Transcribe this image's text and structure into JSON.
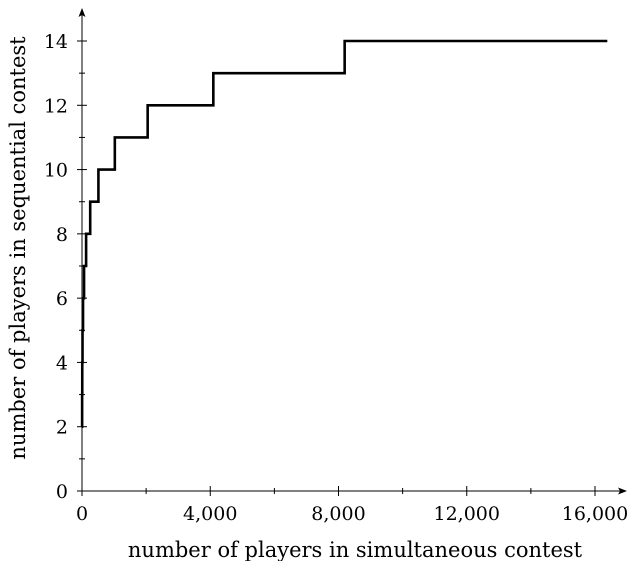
{
  "chart_data": {
    "type": "line",
    "line_style": "step",
    "title": "",
    "xlabel": "number of players in simultaneous contest",
    "ylabel": "number of players in sequential contest",
    "xlim": [
      0,
      17000
    ],
    "ylim": [
      0,
      15
    ],
    "xticks": [
      0,
      4000,
      8000,
      12000,
      16000
    ],
    "xtick_labels": [
      "0",
      "4,000",
      "8,000",
      "12,000",
      "16,000"
    ],
    "xminor_ticks": [
      2000,
      6000,
      10000,
      14000
    ],
    "yticks": [
      0,
      2,
      4,
      6,
      8,
      10,
      12,
      14
    ],
    "ytick_labels": [
      "0",
      "2",
      "4",
      "6",
      "8",
      "10",
      "12",
      "14"
    ],
    "yminor_ticks": [
      1,
      3,
      5,
      7,
      9,
      11,
      13
    ],
    "grid": false,
    "legend": "none",
    "line_color": "#000000",
    "series": [
      {
        "x": [
          2,
          4,
          8,
          16,
          32,
          64,
          128,
          256,
          512,
          1024,
          2048,
          4096,
          8192,
          16384
        ],
        "y": [
          2,
          3,
          4,
          5,
          6,
          7,
          8,
          9,
          10,
          11,
          12,
          13,
          14,
          14
        ]
      }
    ]
  }
}
